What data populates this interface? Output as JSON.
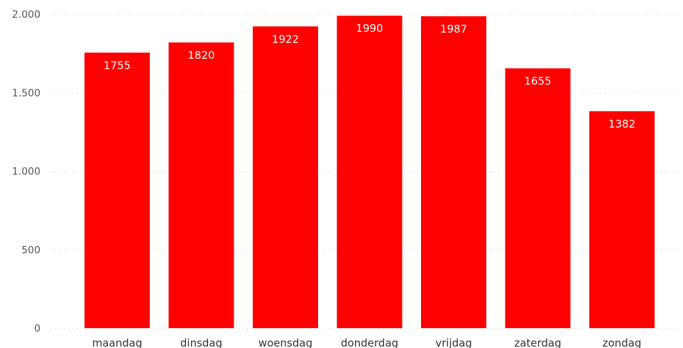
{
  "chart_data": {
    "type": "bar",
    "title": "",
    "xlabel": "",
    "ylabel": "",
    "categories": [
      "maandag",
      "dinsdag",
      "woensdag",
      "donderdag",
      "vrijdag",
      "zaterdag",
      "zondag"
    ],
    "values": [
      1755,
      1820,
      1922,
      1990,
      1987,
      1655,
      1382
    ],
    "data_labels": [
      "1755",
      "1820",
      "1922",
      "1990",
      "1987",
      "1655",
      "1382"
    ],
    "ylim": [
      0,
      2000
    ],
    "yticks": [
      0,
      500,
      1000,
      1500,
      2000
    ],
    "ytick_labels": [
      "0",
      "500",
      "1.000",
      "1.500",
      "2.000"
    ],
    "grid": true,
    "legend": "none",
    "bar_color": "#ff0000"
  }
}
